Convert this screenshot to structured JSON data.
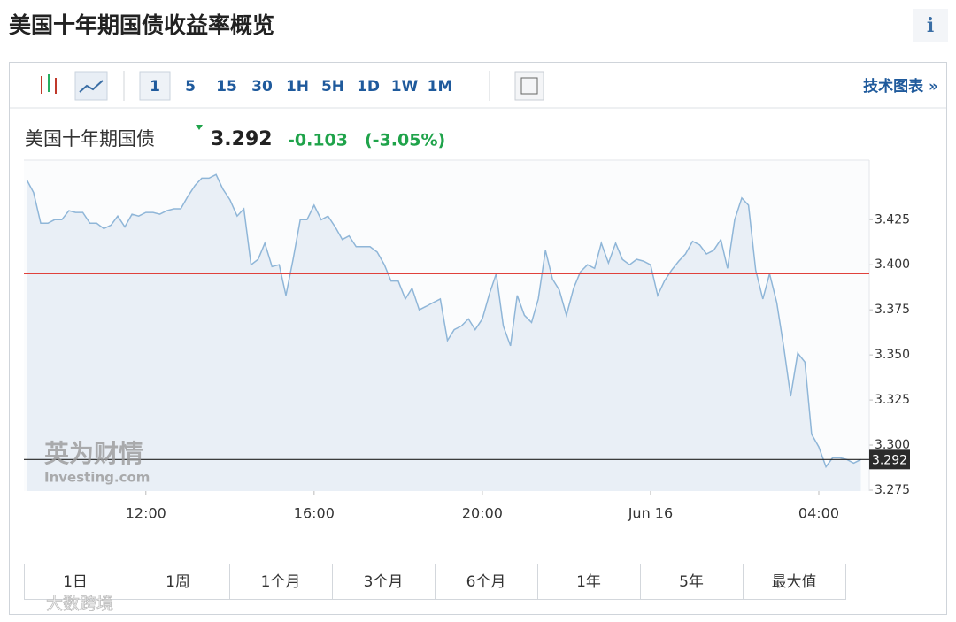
{
  "header": {
    "title": "美国十年期国债收益率概览",
    "info": "i"
  },
  "toolbar": {
    "intervals": [
      "1",
      "5",
      "15",
      "30",
      "1H",
      "5H",
      "1D",
      "1W",
      "1M"
    ],
    "technical_chart_link": "技术图表 »"
  },
  "quote": {
    "name": "美国十年期国债",
    "price": 3.292,
    "change": -0.103,
    "change_percent": "(-3.05%)"
  },
  "chart_data": {
    "type": "area",
    "color": "#8fb6d8",
    "fill": "#e9eff6",
    "x": [
      9.17,
      9.33,
      9.5,
      9.67,
      9.83,
      10,
      10.17,
      10.33,
      10.5,
      10.67,
      10.83,
      11,
      11.17,
      11.33,
      11.5,
      11.67,
      11.83,
      12,
      12.17,
      12.33,
      12.5,
      12.67,
      12.83,
      13,
      13.17,
      13.33,
      13.5,
      13.67,
      13.83,
      14,
      14.17,
      14.33,
      14.5,
      14.67,
      14.83,
      15,
      15.17,
      15.33,
      15.5,
      15.67,
      15.83,
      16,
      16.17,
      16.33,
      16.5,
      16.67,
      16.83,
      17,
      17.17,
      17.33,
      17.5,
      17.67,
      17.83,
      18,
      18.17,
      18.33,
      18.5,
      18.67,
      18.83,
      19,
      19.17,
      19.33,
      19.5,
      19.67,
      19.83,
      20,
      20.17,
      20.33,
      20.5,
      20.67,
      20.83,
      21,
      21.17,
      21.33,
      21.5,
      21.67,
      21.83,
      22,
      22.17,
      22.33,
      22.5,
      22.67,
      22.83,
      23,
      23.17,
      23.33,
      23.5,
      23.67,
      23.83,
      24,
      24.17,
      24.33,
      24.5,
      24.67,
      24.83,
      25,
      25.17,
      25.33,
      25.5,
      25.67,
      25.83,
      26,
      26.17,
      26.33,
      26.5,
      26.67,
      26.83,
      27,
      27.17,
      27.33,
      27.5,
      27.67,
      27.83,
      28,
      28.17,
      28.33,
      28.5,
      28.67,
      28.83,
      29
    ],
    "values": [
      3.447,
      3.44,
      3.423,
      3.423,
      3.425,
      3.425,
      3.43,
      3.429,
      3.429,
      3.423,
      3.423,
      3.42,
      3.422,
      3.427,
      3.421,
      3.428,
      3.427,
      3.429,
      3.429,
      3.428,
      3.43,
      3.431,
      3.431,
      3.438,
      3.444,
      3.448,
      3.448,
      3.45,
      3.442,
      3.436,
      3.427,
      3.431,
      3.4,
      3.403,
      3.412,
      3.399,
      3.4,
      3.383,
      3.403,
      3.425,
      3.425,
      3.433,
      3.425,
      3.427,
      3.421,
      3.414,
      3.416,
      3.41,
      3.41,
      3.41,
      3.407,
      3.4,
      3.391,
      3.391,
      3.381,
      3.387,
      3.375,
      3.377,
      3.379,
      3.381,
      3.358,
      3.364,
      3.366,
      3.37,
      3.364,
      3.37,
      3.384,
      3.395,
      3.366,
      3.355,
      3.383,
      3.372,
      3.368,
      3.381,
      3.408,
      3.392,
      3.386,
      3.372,
      3.387,
      3.396,
      3.4,
      3.398,
      3.412,
      3.401,
      3.412,
      3.403,
      3.4,
      3.403,
      3.402,
      3.4,
      3.383,
      3.391,
      3.397,
      3.402,
      3.406,
      3.413,
      3.411,
      3.406,
      3.408,
      3.414,
      3.398,
      3.425,
      3.437,
      3.433,
      3.397,
      3.381,
      3.395,
      3.379,
      3.354,
      3.327,
      3.351,
      3.346,
      3.306,
      3.299,
      3.288,
      3.293,
      3.293,
      3.292,
      3.29,
      3.292
    ],
    "xlim": [
      9.1,
      29.2
    ],
    "xticks": [
      {
        "value": 12,
        "label": "12:00"
      },
      {
        "value": 16,
        "label": "16:00"
      },
      {
        "value": 20,
        "label": "20:00"
      },
      {
        "value": 24,
        "label": "Jun 16"
      },
      {
        "value": 28,
        "label": "04:00"
      }
    ],
    "ylim": [
      3.2745,
      3.458
    ],
    "yticks": [
      3.275,
      {
        "value": 3.3,
        "label": "3.300"
      },
      3.325,
      {
        "value": 3.35,
        "label": "3.350"
      },
      3.375,
      {
        "value": 3.4,
        "label": "3.400"
      },
      3.425
    ],
    "reference_line": 3.395,
    "reference_color": "#e0413c"
  },
  "watermark": {
    "cn": "英为财情",
    "en": "Investing.com"
  },
  "ranges": [
    "1日",
    "1周",
    "1个月",
    "3个月",
    "6个月",
    "1年",
    "5年",
    "最大值"
  ],
  "footer_watermark": "大数跨境"
}
